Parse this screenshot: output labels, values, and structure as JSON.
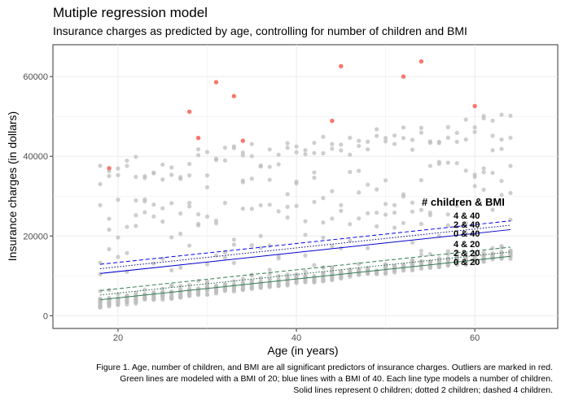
{
  "chart_data": {
    "type": "scatter",
    "title": "Mutiple regression model",
    "subtitle": "Insurance charges as predicted by age, controlling for number of children and BMI",
    "xlabel": "Age (in years)",
    "ylabel": "Insurance charges (in dollars)",
    "xlim": [
      12.7,
      69.3
    ],
    "ylim": [
      -3200,
      68000
    ],
    "xticks": [
      20,
      40,
      60
    ],
    "yticks": [
      0,
      20000,
      40000,
      60000
    ],
    "grid": true,
    "legend_title": "# children & BMI",
    "outliers": {
      "color": "#f8766d",
      "points": [
        {
          "x": 19,
          "y": 37000
        },
        {
          "x": 28,
          "y": 51200
        },
        {
          "x": 29,
          "y": 44600
        },
        {
          "x": 31,
          "y": 58600
        },
        {
          "x": 33,
          "y": 55100
        },
        {
          "x": 34,
          "y": 43900
        },
        {
          "x": 44,
          "y": 48900
        },
        {
          "x": 45,
          "y": 62600
        },
        {
          "x": 52,
          "y": 60000
        },
        {
          "x": 54,
          "y": 63800
        },
        {
          "x": 60,
          "y": 52600
        }
      ]
    },
    "point_color": "#bdbdbd",
    "lines": [
      {
        "label": "4 & 40",
        "children": 4,
        "bmi": 40,
        "style": "dashed",
        "color": "#0000ee",
        "x": [
          18,
          64
        ],
        "y": [
          12900,
          23800
        ]
      },
      {
        "label": "2 & 40",
        "children": 2,
        "bmi": 40,
        "style": "dotted",
        "color": "#000080",
        "x": [
          18,
          64
        ],
        "y": [
          11800,
          22700
        ]
      },
      {
        "label": "0 & 40",
        "children": 0,
        "bmi": 40,
        "style": "solid",
        "color": "#0000cc",
        "x": [
          18,
          64
        ],
        "y": [
          10600,
          21600
        ]
      },
      {
        "label": "4 & 20",
        "children": 4,
        "bmi": 20,
        "style": "dashed",
        "color": "#2e7d4f",
        "x": [
          18,
          64
        ],
        "y": [
          6300,
          17200
        ]
      },
      {
        "label": "2 & 20",
        "children": 2,
        "bmi": 20,
        "style": "dotted",
        "color": "#1b5e3a",
        "x": [
          18,
          64
        ],
        "y": [
          5200,
          16000
        ]
      },
      {
        "label": "0 & 20",
        "children": 0,
        "bmi": 20,
        "style": "solid",
        "color": "#2e7d4f",
        "x": [
          18,
          64
        ],
        "y": [
          4000,
          14900
        ]
      }
    ]
  },
  "caption": {
    "line1": "Figure 1. Age, number of children, and BMI are all significant predictors of insurance charges. Outliers are marked in red.",
    "line2": "Green lines are modeled with a BMI of 20; blue lines with a BMI of 40. Each line type models a number of children.",
    "line3": "Solid lines represent 0 children; dotted 2 children; dashed 4 children."
  }
}
